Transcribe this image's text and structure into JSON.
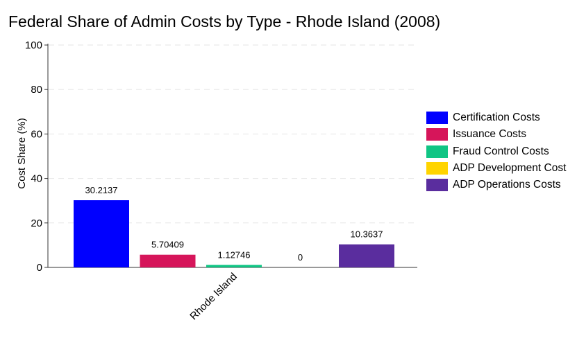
{
  "chart_data": {
    "type": "bar",
    "title": "Federal Share of Admin Costs by Type - Rhode Island (2008)",
    "xlabel": "",
    "ylabel": "Cost Share (%)",
    "ylim": [
      0,
      100
    ],
    "yticks": [
      0,
      20,
      40,
      60,
      80,
      100
    ],
    "categories": [
      "Rhode Island"
    ],
    "grid": "horizontal dashed",
    "legend_position": "right",
    "series": [
      {
        "name": "Certification Costs",
        "values": [
          30.2137
        ],
        "label": "30.2137",
        "color": "#0000ff"
      },
      {
        "name": "Issuance Costs",
        "values": [
          5.70409
        ],
        "label": "5.70409",
        "color": "#d6155a"
      },
      {
        "name": "Fraud Control Costs",
        "values": [
          1.12746
        ],
        "label": "1.12746",
        "color": "#10c584"
      },
      {
        "name": "ADP Development Cost",
        "values": [
          0
        ],
        "label": "0",
        "color": "#ffd400"
      },
      {
        "name": "ADP Operations Costs",
        "values": [
          10.3637
        ],
        "label": "10.3637",
        "color": "#5a2d9e"
      }
    ]
  }
}
